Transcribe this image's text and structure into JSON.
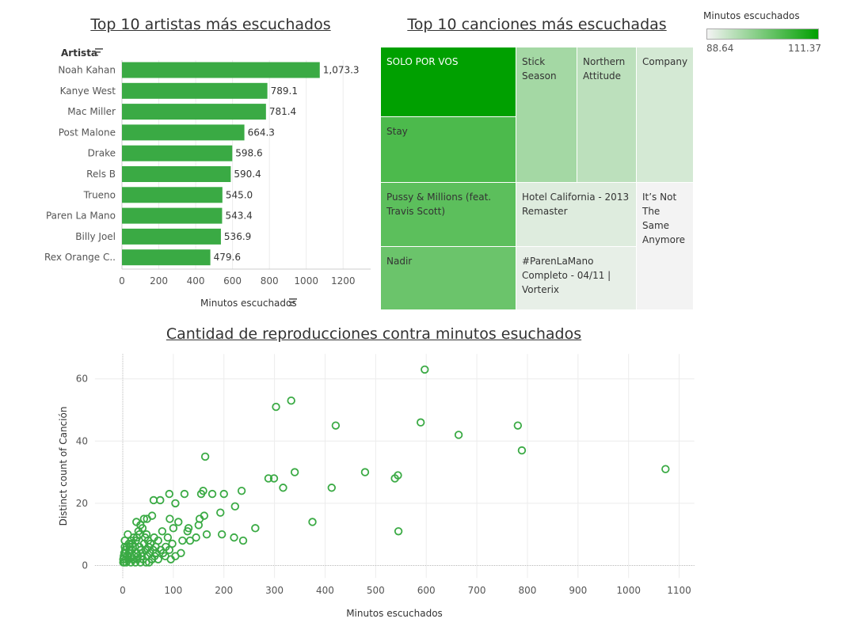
{
  "bar_title": "Top 10 artistas más escuchados",
  "treemap_title": "Top 10 canciones más escuchadas",
  "scatter_title": "Cantidad de reproducciones contra minutos esuchados",
  "bar_header_label": "Artista",
  "legend": {
    "title": "Minutos escuchados",
    "min": "88.64",
    "max": "111.37",
    "color_low": "#f3f3f3",
    "color_high": "#00a000"
  },
  "colors": {
    "bar": "#3aaa44",
    "scatter": "#3aaa44",
    "grid": "#ececec"
  },
  "chart_data": [
    {
      "type": "bar",
      "orientation": "horizontal",
      "categories": [
        "Noah Kahan",
        "Kanye West",
        "Mac Miller",
        "Post Malone",
        "Drake",
        "Rels B",
        "Trueno",
        "Paren La Mano",
        "Billy Joel",
        "Rex Orange C.."
      ],
      "values": [
        1073.3,
        789.1,
        781.4,
        664.3,
        598.6,
        590.4,
        545.0,
        543.4,
        536.9,
        479.6
      ],
      "value_labels": [
        "1,073.3",
        "789.1",
        "781.4",
        "664.3",
        "598.6",
        "590.4",
        "545.0",
        "543.4",
        "536.9",
        "479.6"
      ],
      "xlabel": "Minutos escuchados",
      "ylabel": "Artista",
      "xlim": [
        0,
        1350
      ],
      "xticks": [
        0,
        200,
        400,
        600,
        800,
        1000,
        1200
      ],
      "grid": true
    },
    {
      "type": "treemap",
      "color_measure": "Minutos escuchados",
      "tiles": [
        {
          "label": "SOLO POR VOS",
          "value": 111.37
        },
        {
          "label": "Stay",
          "value": 104.3
        },
        {
          "label": "Pussy & Millions (feat. Travis Scott)",
          "value": 102.8
        },
        {
          "label": "Nadir",
          "value": 101.4
        },
        {
          "label": "Stick Season",
          "value": 96.0
        },
        {
          "label": "Northern Attitude",
          "value": 93.8
        },
        {
          "label": "Company",
          "value": 91.5
        },
        {
          "label": "Hotel California - 2013 Remaster",
          "value": 90.6
        },
        {
          "label": "#ParenLaMano Completo - 04/11 | Vorterix",
          "value": 89.8
        },
        {
          "label": "It’s Not The Same Anymore",
          "value": 88.64
        }
      ]
    },
    {
      "type": "scatter",
      "xlabel": "Minutos escuchados",
      "ylabel": "Distinct count of Canción",
      "xlim": [
        -55,
        1130
      ],
      "ylim": [
        -4,
        68
      ],
      "xticks": [
        0,
        100,
        200,
        300,
        400,
        500,
        600,
        700,
        800,
        900,
        1000,
        1100
      ],
      "yticks": [
        0,
        20,
        40,
        60
      ],
      "grid": true,
      "points": [
        [
          597,
          63
        ],
        [
          333,
          53
        ],
        [
          303,
          51
        ],
        [
          421,
          45
        ],
        [
          589,
          46
        ],
        [
          664,
          42
        ],
        [
          781,
          45
        ],
        [
          789,
          37
        ],
        [
          1073,
          31
        ],
        [
          163,
          35
        ],
        [
          340,
          30
        ],
        [
          479,
          30
        ],
        [
          544,
          29
        ],
        [
          538,
          28
        ],
        [
          288,
          28
        ],
        [
          299,
          28
        ],
        [
          317,
          25
        ],
        [
          413,
          25
        ],
        [
          92,
          23
        ],
        [
          122,
          23
        ],
        [
          155,
          23
        ],
        [
          159,
          24
        ],
        [
          177,
          23
        ],
        [
          200,
          23
        ],
        [
          235,
          24
        ],
        [
          61,
          21
        ],
        [
          74,
          21
        ],
        [
          104,
          20
        ],
        [
          222,
          19
        ],
        [
          193,
          17
        ],
        [
          152,
          15
        ],
        [
          161,
          16
        ],
        [
          58,
          16
        ],
        [
          48,
          15
        ],
        [
          42,
          15
        ],
        [
          27,
          14
        ],
        [
          35,
          13
        ],
        [
          93,
          15
        ],
        [
          110,
          14
        ],
        [
          130,
          12
        ],
        [
          150,
          13
        ],
        [
          262,
          12
        ],
        [
          375,
          14
        ],
        [
          545,
          11
        ],
        [
          196,
          10
        ],
        [
          220,
          9
        ],
        [
          238,
          8
        ],
        [
          166,
          10
        ],
        [
          100,
          12
        ],
        [
          78,
          11
        ],
        [
          89,
          9
        ],
        [
          70,
          8
        ],
        [
          98,
          7
        ],
        [
          118,
          8
        ],
        [
          128,
          11
        ],
        [
          145,
          9
        ],
        [
          133,
          8
        ],
        [
          115,
          4
        ],
        [
          92,
          5
        ],
        [
          84,
          3
        ],
        [
          95,
          2
        ],
        [
          104,
          3
        ],
        [
          65,
          6
        ],
        [
          55,
          7
        ],
        [
          47,
          10
        ],
        [
          39,
          12
        ],
        [
          33,
          10
        ],
        [
          26,
          8
        ],
        [
          22,
          9
        ],
        [
          17,
          8
        ],
        [
          12,
          7
        ],
        [
          8,
          6
        ],
        [
          5,
          5
        ],
        [
          3,
          4
        ],
        [
          2,
          3
        ],
        [
          1,
          2
        ],
        [
          1,
          1
        ],
        [
          3,
          1
        ],
        [
          6,
          2
        ],
        [
          9,
          3
        ],
        [
          12,
          4
        ],
        [
          15,
          3
        ],
        [
          18,
          5
        ],
        [
          21,
          2
        ],
        [
          24,
          6
        ],
        [
          27,
          4
        ],
        [
          30,
          3
        ],
        [
          33,
          6
        ],
        [
          36,
          5
        ],
        [
          39,
          4
        ],
        [
          42,
          7
        ],
        [
          45,
          5
        ],
        [
          48,
          3
        ],
        [
          51,
          6
        ],
        [
          54,
          4
        ],
        [
          57,
          2
        ],
        [
          60,
          5
        ],
        [
          63,
          3
        ],
        [
          66,
          4
        ],
        [
          70,
          2
        ],
        [
          75,
          5
        ],
        [
          80,
          4
        ],
        [
          85,
          6
        ],
        [
          4,
          8
        ],
        [
          10,
          10
        ],
        [
          14,
          6
        ],
        [
          19,
          7
        ],
        [
          28,
          9
        ],
        [
          31,
          11
        ],
        [
          44,
          9
        ],
        [
          50,
          8
        ],
        [
          62,
          9
        ],
        [
          7,
          1
        ],
        [
          11,
          2
        ],
        [
          16,
          1
        ],
        [
          20,
          2
        ],
        [
          25,
          1
        ],
        [
          29,
          2
        ],
        [
          35,
          1
        ],
        [
          40,
          2
        ],
        [
          46,
          1
        ],
        [
          52,
          1
        ],
        [
          58,
          2
        ],
        [
          4,
          6
        ],
        [
          6,
          4
        ],
        [
          13,
          5
        ],
        [
          23,
          3
        ],
        [
          37,
          3
        ]
      ]
    }
  ]
}
